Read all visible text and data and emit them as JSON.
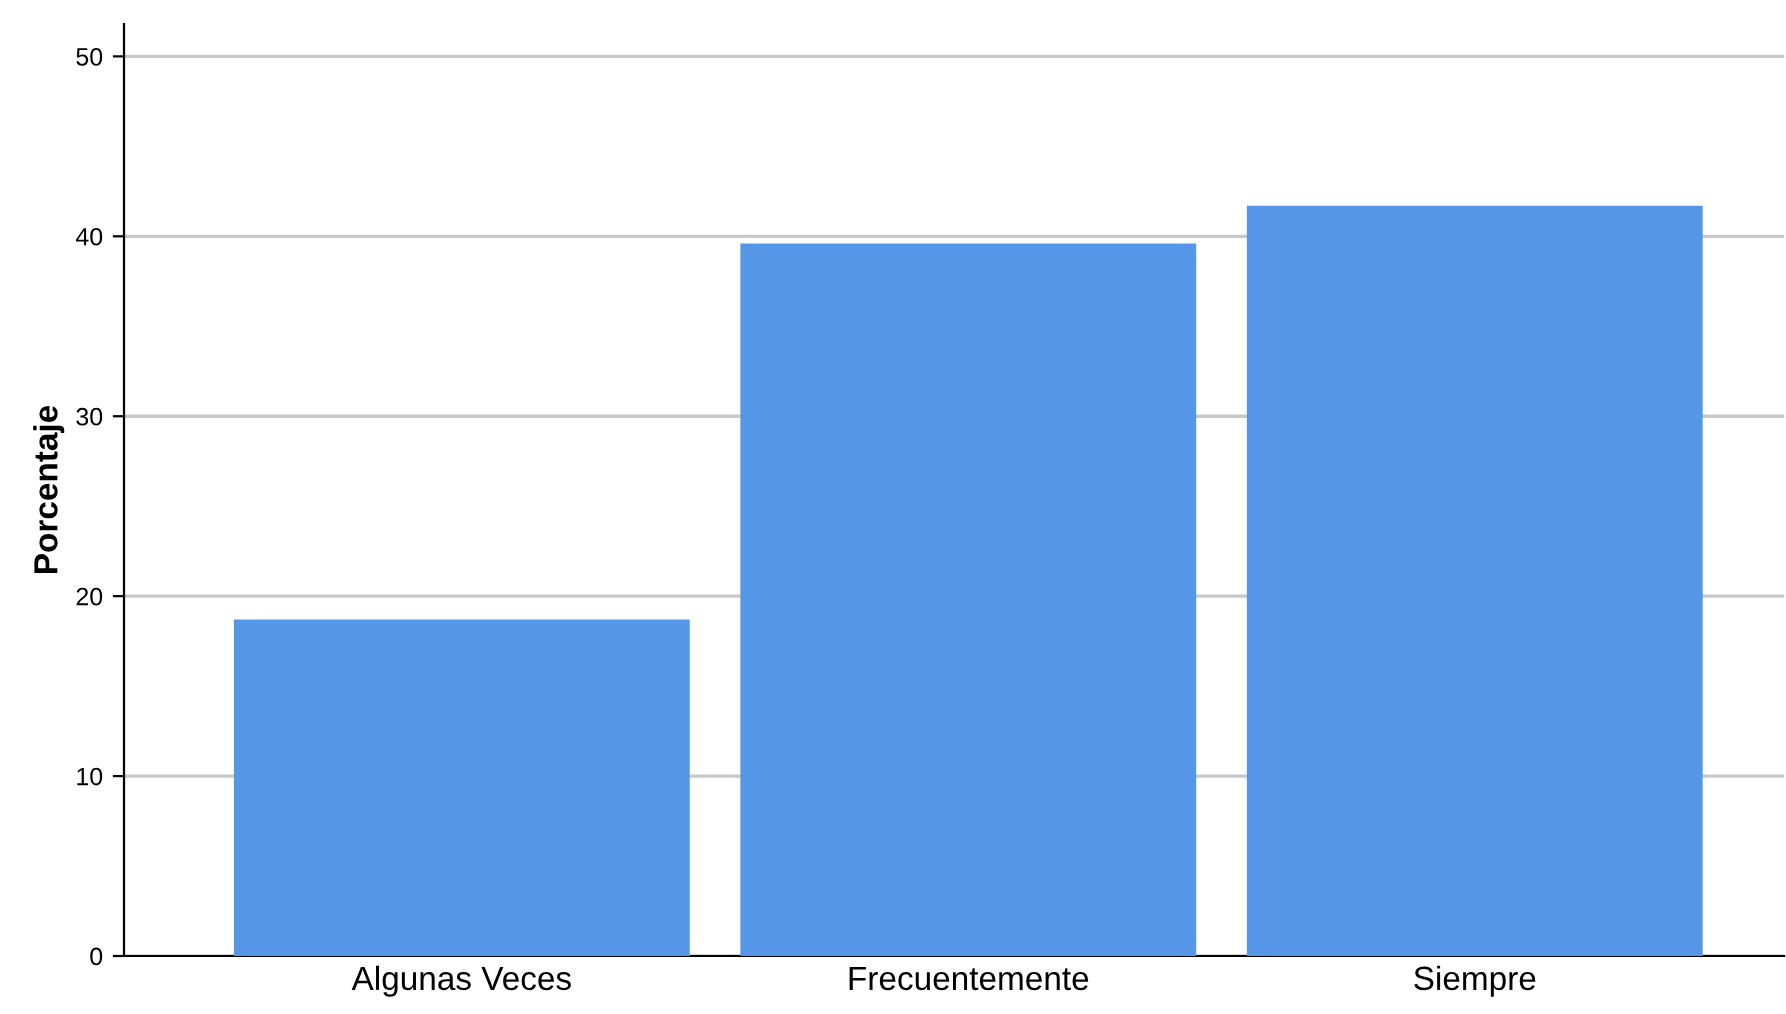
{
  "chart_data": {
    "type": "bar",
    "ylabel": "Porcentaje",
    "categories": [
      "Algunas Veces",
      "Frecuentemente",
      "Siempre"
    ],
    "values": [
      18.7,
      39.6,
      41.7
    ],
    "color": "#5596e6",
    "ylim": [
      0,
      51.8
    ],
    "yticks": [
      0,
      10,
      20,
      30,
      40,
      50
    ],
    "grid": "y"
  }
}
